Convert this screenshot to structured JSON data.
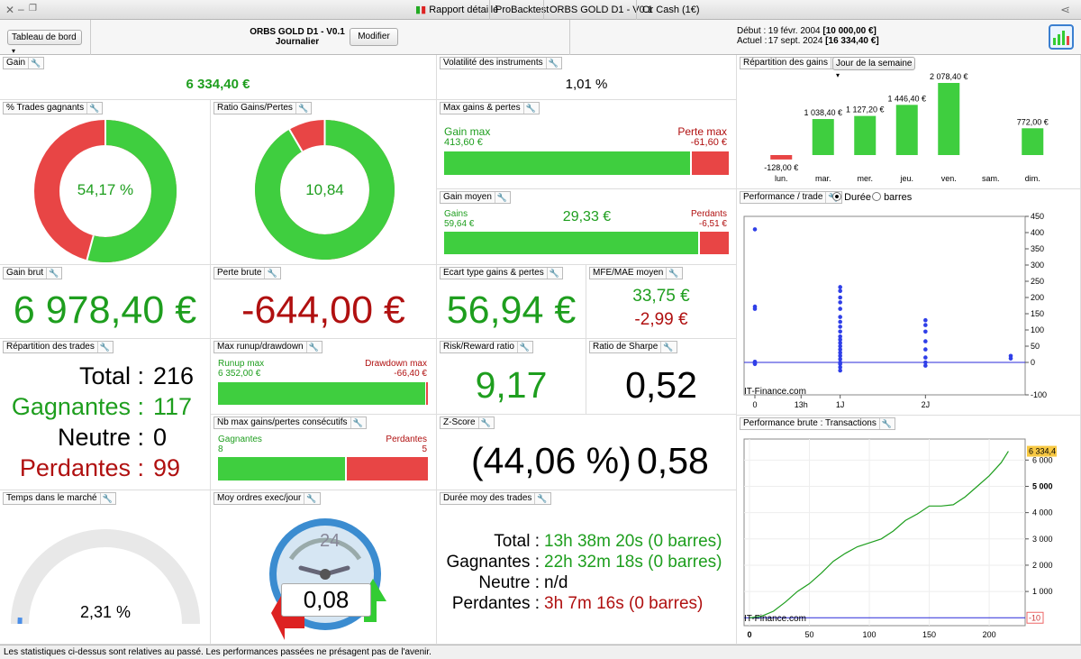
{
  "window": {
    "tabs": [
      "Rapport détaillé",
      "ProBacktest",
      "ORBS GOLD D1 - V0.1",
      "Or Cash (1€)"
    ]
  },
  "header": {
    "dashboard_select": "Tableau de bord",
    "strategy_name": "ORBS GOLD D1 - V0.1",
    "timeframe": "Journalier",
    "modify_button": "Modifier",
    "start_label": "Début :",
    "start_date": "19 févr. 2004",
    "start_capital": "[10 000,00 €]",
    "current_label": "Actuel :",
    "current_date": "17 sept. 2024",
    "current_capital": "[16 334,40 €]"
  },
  "panels": {
    "gain": {
      "title": "Gain",
      "value": "6 334,40 €"
    },
    "volatility": {
      "title": "Volatilité des instruments",
      "value": "1,01 %"
    },
    "win_pct": {
      "title": "% Trades gagnants",
      "value": "54,17 %",
      "fraction": 0.5417
    },
    "ratio": {
      "title": "Ratio Gains/Pertes",
      "value": "10,84",
      "fraction": 0.9155
    },
    "max_gains": {
      "title": "Max gains & pertes",
      "gain_label": "Gain max",
      "gain_value": "413,60 €",
      "loss_label": "Perte max",
      "loss_value": "-61,60 €",
      "gain_fraction": 0.87
    },
    "avg_gain": {
      "title": "Gain moyen",
      "value": "29,33 €",
      "gain_label": "Gains",
      "gain_value": "59,64 €",
      "loss_label": "Perdants",
      "loss_value": "-6,51 €",
      "gain_fraction": 0.9
    }
  },
  "gross": {
    "gain_title": "Gain brut",
    "gain_value": "6 978,40 €",
    "loss_title": "Perte brute",
    "loss_value": "-644,00 €",
    "std_title": "Ecart type gains & pertes",
    "std_value": "56,94 €",
    "mfe_title": "MFE/MAE moyen",
    "mfe_value": "33,75 €",
    "mae_value": "-2,99 €"
  },
  "trades": {
    "title": "Répartition des trades",
    "total_label": "Total :",
    "total_value": "216",
    "win_label": "Gagnantes :",
    "win_value": "117",
    "neutral_label": "Neutre :",
    "neutral_value": "0",
    "loss_label": "Perdantes :",
    "loss_value": "99"
  },
  "runup": {
    "title": "Max runup/drawdown",
    "runup_label": "Runup max",
    "runup_value": "6 352,00 €",
    "dd_label": "Drawdown max",
    "dd_value": "-66,40 €",
    "fraction": 0.99
  },
  "risk": {
    "title": "Risk/Reward ratio",
    "value": "9,17"
  },
  "sharpe": {
    "title": "Ratio de Sharpe",
    "value": "0,52"
  },
  "consec": {
    "title": "Nb max gains/pertes consécutifs",
    "win_label": "Gagnantes",
    "win_value": "8",
    "loss_label": "Perdantes",
    "loss_value": "5",
    "fraction": 0.615
  },
  "zscore": {
    "title": "Z-Score",
    "pct": "(44,06 %)",
    "value": "0,58"
  },
  "market_time": {
    "title": "Temps dans le marché",
    "value": "2,31 %",
    "fraction": 0.0231
  },
  "orders": {
    "title": "Moy ordres exec/jour",
    "value": "0,08",
    "clock_label": "24"
  },
  "duration": {
    "title": "Durée moy des trades",
    "total_label": "Total :",
    "total_value": "13h 38m 20s (0 barres)",
    "win_label": "Gagnantes :",
    "win_value": "22h 32m 18s (0 barres)",
    "neutral_label": "Neutre :",
    "neutral_value": "n/d",
    "loss_label": "Perdantes :",
    "loss_value": "3h 7m 16s (0 barres)"
  },
  "gain_distribution": {
    "title": "Répartition des gains",
    "select": "Jour de la semaine"
  },
  "perf_trade": {
    "title": "Performance / trade",
    "opt_duration": "Durée",
    "opt_bars": "barres",
    "watermark": "IT-Finance.com"
  },
  "perf_brute": {
    "title": "Performance brute : Transactions",
    "watermark": "IT-Finance.com",
    "last_value": "6 334,4",
    "zero_value": "-10"
  },
  "footer": {
    "text": "Les statistiques ci-dessus sont relatives au passé. Les performances passées ne présagent pas de l'avenir."
  },
  "colors": {
    "green": "#3fce3f",
    "red": "#e84545",
    "value_green": "#1e9e1e",
    "value_red": "#b01010",
    "line_blue": "#2a2ad8"
  },
  "chart_data": [
    {
      "type": "bar",
      "categories": [
        "lun.",
        "mar.",
        "mer.",
        "jeu.",
        "ven.",
        "sam.",
        "dim."
      ],
      "values": [
        -128,
        1038.4,
        1127.2,
        1446.4,
        2078.4,
        null,
        772
      ],
      "labels": [
        "-128,00 €",
        "1 038,40 €",
        "1 127,20 €",
        "1 446,40 €",
        "2 078,40 €",
        "",
        "772,00 €"
      ]
    },
    {
      "type": "scatter",
      "x_ticks": [
        "0",
        "13h",
        "1J",
        "2J"
      ],
      "y_ticks": [
        450,
        400,
        350,
        300,
        250,
        200,
        150,
        100,
        50,
        0,
        -100
      ],
      "ylim": [
        -100,
        450
      ],
      "xlim_hours": [
        0,
        60
      ],
      "points": [
        {
          "x": 0,
          "y": 410
        },
        {
          "x": 0,
          "y": 172
        },
        {
          "x": 0,
          "y": 165
        },
        {
          "x": 0,
          "y": 2
        },
        {
          "x": 0,
          "y": -2
        },
        {
          "x": 0,
          "y": -5
        },
        {
          "x": 24,
          "y": 232
        },
        {
          "x": 24,
          "y": 220
        },
        {
          "x": 24,
          "y": 200
        },
        {
          "x": 24,
          "y": 185
        },
        {
          "x": 24,
          "y": 165
        },
        {
          "x": 24,
          "y": 140
        },
        {
          "x": 24,
          "y": 125
        },
        {
          "x": 24,
          "y": 110
        },
        {
          "x": 24,
          "y": 95
        },
        {
          "x": 24,
          "y": 80
        },
        {
          "x": 24,
          "y": 70
        },
        {
          "x": 24,
          "y": 60
        },
        {
          "x": 24,
          "y": 50
        },
        {
          "x": 24,
          "y": 40
        },
        {
          "x": 24,
          "y": 30
        },
        {
          "x": 24,
          "y": 20
        },
        {
          "x": 24,
          "y": 10
        },
        {
          "x": 24,
          "y": 0
        },
        {
          "x": 24,
          "y": -5
        },
        {
          "x": 24,
          "y": -15
        },
        {
          "x": 24,
          "y": -25
        },
        {
          "x": 48,
          "y": 130
        },
        {
          "x": 48,
          "y": 115
        },
        {
          "x": 48,
          "y": 95
        },
        {
          "x": 48,
          "y": 65
        },
        {
          "x": 48,
          "y": 40
        },
        {
          "x": 48,
          "y": 15
        },
        {
          "x": 48,
          "y": 0
        },
        {
          "x": 48,
          "y": -10
        },
        {
          "x": 72,
          "y": 20
        },
        {
          "x": 72,
          "y": 12
        }
      ]
    },
    {
      "type": "line",
      "xlim": [
        0,
        230
      ],
      "ylim": [
        -300,
        6800
      ],
      "x_ticks": [
        0,
        50,
        100,
        150,
        200
      ],
      "y_ticks": [
        1000,
        2000,
        3000,
        4000,
        5000,
        6000
      ],
      "points": [
        [
          0,
          0
        ],
        [
          10,
          60
        ],
        [
          20,
          250
        ],
        [
          30,
          600
        ],
        [
          40,
          1000
        ],
        [
          50,
          1300
        ],
        [
          60,
          1700
        ],
        [
          70,
          2150
        ],
        [
          80,
          2450
        ],
        [
          90,
          2700
        ],
        [
          100,
          2850
        ],
        [
          110,
          3000
        ],
        [
          120,
          3300
        ],
        [
          130,
          3700
        ],
        [
          140,
          3950
        ],
        [
          150,
          4250
        ],
        [
          160,
          4250
        ],
        [
          170,
          4300
        ],
        [
          180,
          4600
        ],
        [
          190,
          5000
        ],
        [
          200,
          5400
        ],
        [
          210,
          5900
        ],
        [
          216,
          6334.4
        ]
      ]
    }
  ]
}
